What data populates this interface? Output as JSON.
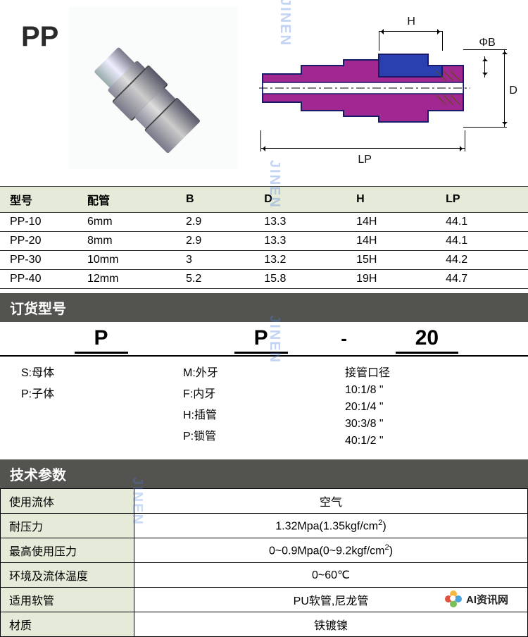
{
  "product": {
    "code": "PP"
  },
  "diagram": {
    "labels": {
      "H": "H",
      "PhiB": "ΦB",
      "D": "D",
      "LP": "LP"
    },
    "colors": {
      "body_fill": "#a02890",
      "cap_fill": "#2a3fb0",
      "outline": "#1a1a6a",
      "hatch": "#222"
    }
  },
  "spec_table": {
    "headers": [
      "型号",
      "配管",
      "B",
      "D",
      "H",
      "LP"
    ],
    "rows": [
      [
        "PP-10",
        "6mm",
        "2.9",
        "13.3",
        "14H",
        "44.1"
      ],
      [
        "PP-20",
        "8mm",
        "2.9",
        "13.3",
        "14H",
        "44.1"
      ],
      [
        "PP-30",
        "10mm",
        "3",
        "13.2",
        "15H",
        "44.2"
      ],
      [
        "PP-40",
        "12mm",
        "5.2",
        "15.8",
        "19H",
        "44.7"
      ]
    ]
  },
  "order": {
    "title": "订货型号",
    "cols": [
      "P",
      "P",
      "20"
    ],
    "dash": "-",
    "left": [
      "S:母体",
      "P:子体"
    ],
    "mid": [
      "M:外牙",
      "F:内牙",
      "H:插管",
      "P:锁管"
    ],
    "right_title": "接管口径",
    "right": [
      "10:1/8 \"",
      "20:1/4 \"",
      "30:3/8 \"",
      "40:1/2 \""
    ]
  },
  "tech": {
    "title": "技术参数",
    "rows": [
      [
        "使用流体",
        "空气"
      ],
      [
        "耐压力",
        "1.32Mpa(1.35kgf/cm²)"
      ],
      [
        "最高使用压力",
        "0~0.9Mpa(0~9.2kgf/cm²)"
      ],
      [
        "环境及流体温度",
        "0~60℃"
      ],
      [
        "适用软管",
        "PU软管,尼龙管"
      ],
      [
        "材质",
        "铁镀镍"
      ]
    ]
  },
  "badge": {
    "text": "AI资讯网"
  },
  "watermark": "JINEN"
}
